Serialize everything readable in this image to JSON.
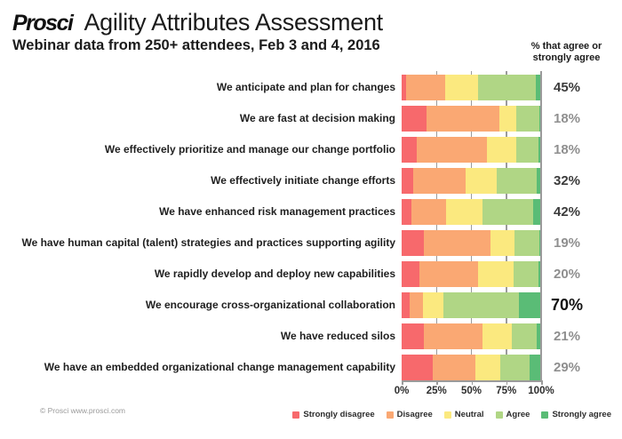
{
  "header": {
    "logo": "Prosci",
    "title": "Agility Attributes Assessment",
    "subtitle": "Webinar data from 250+ attendees, Feb 3 and 4, 2016",
    "right_note": "% that agree or strongly agree"
  },
  "chart_data": {
    "type": "bar",
    "stacked": true,
    "orientation": "horizontal",
    "title": "Agility Attributes Assessment",
    "subtitle": "Webinar data from 250+ attendees, Feb 3 and 4, 2016",
    "xlabel": "",
    "ylabel": "",
    "xlim": [
      0,
      100
    ],
    "x_ticks": [
      "0%",
      "25%",
      "50%",
      "75%",
      "100%"
    ],
    "grid": true,
    "legend_position": "bottom",
    "categories": [
      "We anticipate and plan for changes",
      "We are fast at decision making",
      "We effectively prioritize and manage our change portfolio",
      "We effectively initiate change efforts",
      "We have enhanced risk management practices",
      "We have human capital (talent) strategies and practices supporting agility",
      "We rapidly develop and deploy new capabilities",
      "We encourage cross-organizational collaboration",
      "We have reduced silos",
      "We have an embedded organizational change management capability"
    ],
    "series": [
      {
        "name": "Strongly disagree",
        "color": "#F7696C",
        "values": [
          3,
          18,
          11,
          8,
          7,
          16,
          13,
          6,
          16,
          22
        ]
      },
      {
        "name": "Disagree",
        "color": "#FAA873",
        "values": [
          28,
          52,
          50,
          38,
          25,
          48,
          42,
          9,
          42,
          31
        ]
      },
      {
        "name": "Neutral",
        "color": "#FBE97F",
        "values": [
          24,
          12,
          21,
          22,
          26,
          17,
          25,
          15,
          21,
          18
        ]
      },
      {
        "name": "Agree",
        "color": "#B0D685",
        "values": [
          41,
          17,
          16,
          29,
          36,
          18,
          18,
          54,
          18,
          21
        ]
      },
      {
        "name": "Strongly agree",
        "color": "#5ABC76",
        "values": [
          4,
          1,
          2,
          3,
          6,
          1,
          2,
          16,
          3,
          8
        ]
      }
    ],
    "agree_totals": [
      "45%",
      "18%",
      "18%",
      "32%",
      "42%",
      "19%",
      "20%",
      "70%",
      "21%",
      "29%"
    ],
    "value_styles": [
      "dark",
      "gray",
      "gray",
      "dark",
      "dark",
      "gray",
      "gray",
      "large",
      "gray",
      "gray"
    ],
    "gridline_positions_pct": [
      25,
      50,
      75,
      100
    ],
    "tick_positions_pct": [
      0,
      25,
      50,
      75,
      100
    ]
  },
  "footer": {
    "copyright": "© Prosci www.prosci.com"
  }
}
